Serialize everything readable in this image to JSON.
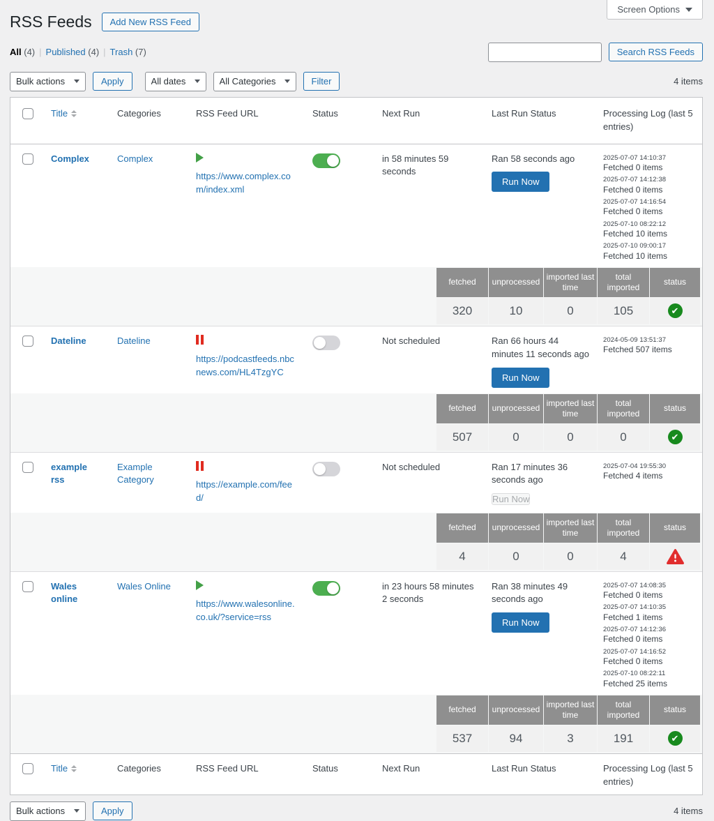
{
  "screen_options": {
    "label": "Screen Options"
  },
  "header": {
    "title": "RSS Feeds",
    "add_new": "Add New RSS Feed"
  },
  "views": {
    "separator": "|",
    "items": [
      {
        "label": "All",
        "count": "(4)",
        "current": true
      },
      {
        "label": "Published",
        "count": "(4)",
        "current": false
      },
      {
        "label": "Trash",
        "count": "(7)",
        "current": false
      }
    ]
  },
  "search": {
    "value": "",
    "button": "Search RSS Feeds"
  },
  "toolbar": {
    "bulk_actions": "Bulk actions",
    "apply": "Apply",
    "all_dates": "All dates",
    "all_categories": "All Categories",
    "filter": "Filter",
    "items_count": "4 items"
  },
  "table": {
    "columns": {
      "title": "Title",
      "categories": "Categories",
      "url": "RSS Feed URL",
      "status": "Status",
      "next_run": "Next Run",
      "last_run_status": "Last Run Status",
      "processing_log": "Processing Log (last 5 entries)"
    },
    "run_now": "Run Now",
    "stats_columns": [
      "fetched",
      "unprocessed",
      "imported last time",
      "total imported",
      "status"
    ],
    "rows": [
      {
        "title": "Complex",
        "category": "Complex",
        "url": "https://www.complex.com/index.xml",
        "state_icon": "play-icon",
        "enabled": true,
        "next_run": "in 58 minutes 59 seconds",
        "last_run_status": "Ran 58 seconds ago",
        "run_now_enabled": true,
        "log": [
          {
            "time": "2025-07-07 14:10:37",
            "text": "Fetched 0 items"
          },
          {
            "time": "2025-07-07 14:12:38",
            "text": "Fetched 0 items"
          },
          {
            "time": "2025-07-07 14:16:54",
            "text": "Fetched 0 items"
          },
          {
            "time": "2025-07-10 08:22:12",
            "text": "Fetched 10 items"
          },
          {
            "time": "2025-07-10 09:00:17",
            "text": "Fetched 10 items"
          }
        ],
        "stats": {
          "fetched": "320",
          "unprocessed": "10",
          "imported_last_time": "0",
          "total_imported": "105",
          "status": "ok"
        }
      },
      {
        "title": "Dateline",
        "category": "Dateline",
        "url": "https://podcastfeeds.nbcnews.com/HL4TzgYC",
        "state_icon": "pause-icon",
        "enabled": false,
        "next_run": "Not scheduled",
        "last_run_status": "Ran 66 hours 44 minutes 11 seconds ago",
        "run_now_enabled": true,
        "log": [
          {
            "time": "2024-05-09 13:51:37",
            "text": "Fetched 507 items"
          }
        ],
        "stats": {
          "fetched": "507",
          "unprocessed": "0",
          "imported_last_time": "0",
          "total_imported": "0",
          "status": "ok"
        }
      },
      {
        "title": "example rss",
        "category": "Example Category",
        "url": "https://example.com/feed/",
        "state_icon": "pause-icon",
        "enabled": false,
        "next_run": "Not scheduled",
        "last_run_status": "Ran 17 minutes 36 seconds ago",
        "run_now_enabled": false,
        "log": [
          {
            "time": "2025-07-04 19:55:30",
            "text": "Fetched 4 items"
          }
        ],
        "stats": {
          "fetched": "4",
          "unprocessed": "0",
          "imported_last_time": "0",
          "total_imported": "4",
          "status": "error"
        }
      },
      {
        "title": "Wales online",
        "category": "Wales Online",
        "url": "https://www.walesonline.co.uk/?service=rss",
        "state_icon": "play-icon",
        "enabled": true,
        "next_run": "in 23 hours 58 minutes 2 seconds",
        "last_run_status": "Ran 38 minutes 49 seconds ago",
        "run_now_enabled": true,
        "log": [
          {
            "time": "2025-07-07 14:08:35",
            "text": "Fetched 0 items"
          },
          {
            "time": "2025-07-07 14:10:35",
            "text": "Fetched 1 items"
          },
          {
            "time": "2025-07-07 14:12:36",
            "text": "Fetched 0 items"
          },
          {
            "time": "2025-07-07 14:16:52",
            "text": "Fetched 0 items"
          },
          {
            "time": "2025-07-10 08:22:11",
            "text": "Fetched 25 items"
          }
        ],
        "stats": {
          "fetched": "537",
          "unprocessed": "94",
          "imported_last_time": "3",
          "total_imported": "191",
          "status": "ok"
        }
      }
    ]
  },
  "footer": {
    "items_count": "4 items"
  }
}
